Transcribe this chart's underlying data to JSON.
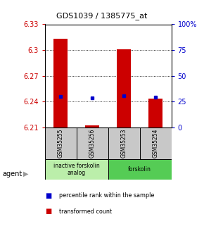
{
  "title": "GDS1039 / 1385775_at",
  "samples": [
    "GSM35255",
    "GSM35256",
    "GSM35253",
    "GSM35254"
  ],
  "bar_values": [
    6.313,
    6.212,
    6.301,
    6.243
  ],
  "bar_base": 6.21,
  "blue_dot_values": [
    6.246,
    6.244,
    6.247,
    6.245
  ],
  "ylim": [
    6.21,
    6.33
  ],
  "yticks_left": [
    6.21,
    6.24,
    6.27,
    6.3,
    6.33
  ],
  "yticks_right": [
    0,
    25,
    50,
    75,
    100
  ],
  "bar_color": "#cc0000",
  "dot_color": "#0000cc",
  "agent_groups": [
    {
      "label": "inactive forskolin\nanalog",
      "samples": [
        0,
        1
      ],
      "color": "#bbeeaa"
    },
    {
      "label": "forskolin",
      "samples": [
        2,
        3
      ],
      "color": "#55cc55"
    }
  ],
  "legend_items": [
    {
      "color": "#cc0000",
      "label": "transformed count"
    },
    {
      "color": "#0000cc",
      "label": "percentile rank within the sample"
    }
  ],
  "bar_width": 0.45,
  "background_color": "#ffffff",
  "left_tick_color": "#cc0000",
  "right_tick_color": "#0000cc",
  "sample_box_color": "#c8c8c8",
  "agent_label": "agent",
  "agent_arrow_color": "#999999"
}
